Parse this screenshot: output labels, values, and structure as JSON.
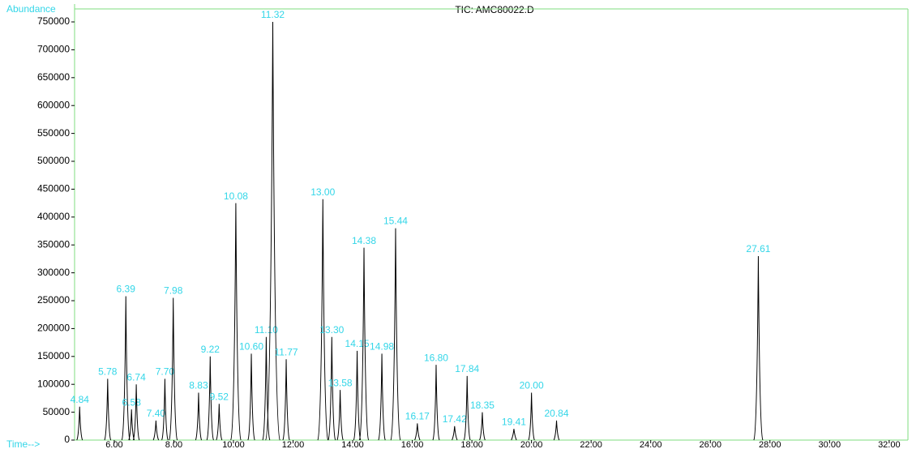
{
  "chart_data": {
    "type": "chromatogram",
    "title": "TIC: AMC80022.D",
    "y_label": "Abundance",
    "x_label": "Time-->",
    "x": [
      4.84,
      5.78,
      6.39,
      6.58,
      6.74,
      7.4,
      7.7,
      7.98,
      8.83,
      9.22,
      9.52,
      10.08,
      10.6,
      11.1,
      11.32,
      11.77,
      13.0,
      13.3,
      13.58,
      14.15,
      14.38,
      14.98,
      15.44,
      16.17,
      16.8,
      17.42,
      17.84,
      18.35,
      19.41,
      20.0,
      20.84,
      27.61
    ],
    "x_labels": [
      "4.84",
      "5.78",
      "6.39",
      "6.58",
      "6.74",
      "7.40",
      "7.70",
      "7.98",
      "8.83",
      "9.22",
      "9.52",
      "10.08",
      "10.60",
      "11.10",
      "11.32",
      "11.77",
      "13.00",
      "13.30",
      "13.58",
      "14.15",
      "14.38",
      "14.98",
      "15.44",
      "16.17",
      "16.80",
      "17.42",
      "17.84",
      "18.35",
      "19.41",
      "20.00",
      "20.84",
      "27.61"
    ],
    "values": [
      60000,
      110000,
      258000,
      55000,
      100000,
      35000,
      110000,
      255000,
      85000,
      150000,
      65000,
      425000,
      155000,
      185000,
      750000,
      145000,
      432000,
      185000,
      90000,
      160000,
      345000,
      155000,
      380000,
      30000,
      135000,
      25000,
      115000,
      50000,
      20000,
      85000,
      35000,
      330000
    ],
    "color": "#000000",
    "label_color": "#33d6e8",
    "axis_color": "#7fdd7f",
    "xlim": [
      4.67,
      32.63
    ],
    "ylim": [
      0,
      765000
    ],
    "xticks": [
      {
        "value": 6,
        "label": "6.00"
      },
      {
        "value": 8,
        "label": "8.00"
      },
      {
        "value": 10,
        "label": "10.00"
      },
      {
        "value": 12,
        "label": "12.00"
      },
      {
        "value": 14,
        "label": "14.00"
      },
      {
        "value": 16,
        "label": "16.00"
      },
      {
        "value": 18,
        "label": "18.00"
      },
      {
        "value": 20,
        "label": "20.00"
      },
      {
        "value": 22,
        "label": "22.00"
      },
      {
        "value": 24,
        "label": "24.00"
      },
      {
        "value": 26,
        "label": "26.00"
      },
      {
        "value": 28,
        "label": "28.00"
      },
      {
        "value": 30,
        "label": "30.00"
      },
      {
        "value": 32,
        "label": "32.00"
      }
    ],
    "yticks": [
      0,
      50000,
      100000,
      150000,
      200000,
      250000,
      300000,
      350000,
      400000,
      450000,
      500000,
      550000,
      600000,
      650000,
      700000,
      750000
    ]
  }
}
